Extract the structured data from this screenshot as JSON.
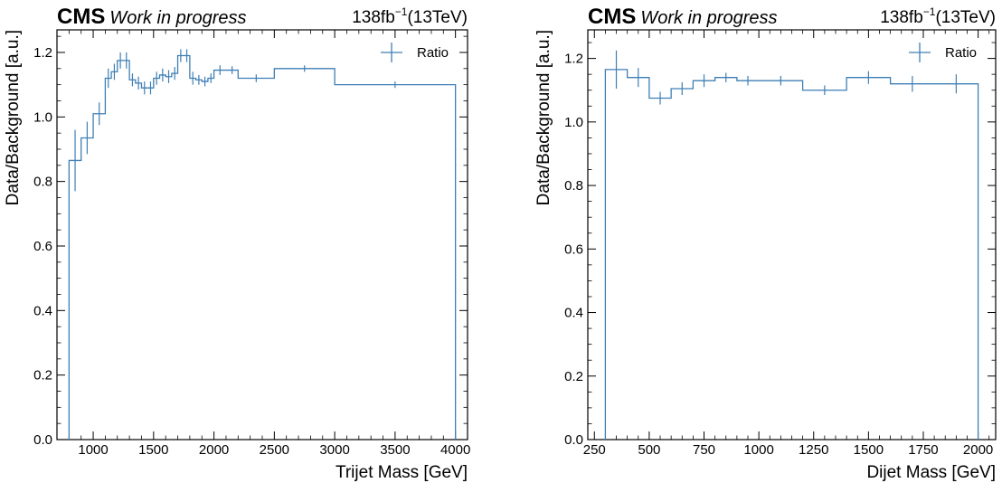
{
  "colors": {
    "series": "#3f7fb5",
    "frame": "#000000"
  },
  "chart_data": [
    {
      "type": "line",
      "style": "step-histogram-with-error-bars",
      "experiment": "CMS",
      "status": "Work in progress",
      "lumi_main": "138fb",
      "lumi_exp": "−1",
      "lumi_energy": "(13TeV)",
      "xlabel": "Trijet Mass [GeV]",
      "ylabel": "Data/Background [a.u.]",
      "xlim": [
        700,
        4100
      ],
      "ylim": [
        0,
        1.27
      ],
      "xticks": [
        1000,
        1500,
        2000,
        2500,
        3000,
        3500,
        4000
      ],
      "xtick_labels": [
        "1000",
        "1500",
        "2000",
        "2500",
        "3000",
        "3500",
        "4000"
      ],
      "yticks": [
        0,
        0.2,
        0.4,
        0.6,
        0.8,
        1.0,
        1.2
      ],
      "ytick_labels": [
        "0.0",
        "0.2",
        "0.4",
        "0.6",
        "0.8",
        "1.0",
        "1.2"
      ],
      "legend": {
        "entries": [
          "Ratio"
        ],
        "position": "top-right"
      },
      "series": [
        {
          "name": "Ratio",
          "bin_edges": [
            800,
            900,
            1000,
            1100,
            1150,
            1200,
            1250,
            1300,
            1350,
            1400,
            1450,
            1500,
            1550,
            1600,
            1650,
            1700,
            1750,
            1800,
            1850,
            1900,
            1950,
            2000,
            2100,
            2200,
            2500,
            3000,
            4000
          ],
          "values": [
            0.865,
            0.935,
            1.01,
            1.12,
            1.14,
            1.175,
            1.175,
            1.115,
            1.105,
            1.09,
            1.09,
            1.12,
            1.13,
            1.125,
            1.135,
            1.19,
            1.19,
            1.12,
            1.115,
            1.11,
            1.12,
            1.145,
            1.145,
            1.12,
            1.15,
            1.1
          ],
          "errors": [
            0.095,
            0.05,
            0.035,
            0.03,
            0.025,
            0.025,
            0.025,
            0.02,
            0.02,
            0.02,
            0.02,
            0.02,
            0.02,
            0.02,
            0.02,
            0.02,
            0.02,
            0.02,
            0.015,
            0.015,
            0.015,
            0.015,
            0.012,
            0.012,
            0.01,
            0.01
          ]
        }
      ]
    },
    {
      "type": "line",
      "style": "step-histogram-with-error-bars",
      "experiment": "CMS",
      "status": "Work in progress",
      "lumi_main": "138fb",
      "lumi_exp": "−1",
      "lumi_energy": "(13TeV)",
      "xlabel": "Dijet Mass [GeV]",
      "ylabel": "Data/Background [a.u.]",
      "xlim": [
        220,
        2080
      ],
      "ylim": [
        0,
        1.29
      ],
      "xticks": [
        250,
        500,
        750,
        1000,
        1250,
        1500,
        1750,
        2000
      ],
      "xtick_labels": [
        "250",
        "500",
        "750",
        "1000",
        "1250",
        "1500",
        "1750",
        "2000"
      ],
      "yticks": [
        0,
        0.2,
        0.4,
        0.6,
        0.8,
        1.0,
        1.2
      ],
      "ytick_labels": [
        "0.0",
        "0.2",
        "0.4",
        "0.6",
        "0.8",
        "1.0",
        "1.2"
      ],
      "legend": {
        "entries": [
          "Ratio"
        ],
        "position": "top-right"
      },
      "series": [
        {
          "name": "Ratio",
          "bin_edges": [
            300,
            400,
            500,
            600,
            700,
            800,
            900,
            1000,
            1200,
            1400,
            1600,
            1800,
            2000
          ],
          "values": [
            1.165,
            1.14,
            1.075,
            1.105,
            1.13,
            1.14,
            1.13,
            1.13,
            1.1,
            1.14,
            1.12,
            1.12
          ],
          "errors": [
            0.06,
            0.03,
            0.02,
            0.02,
            0.02,
            0.015,
            0.015,
            0.015,
            0.015,
            0.02,
            0.025,
            0.03
          ]
        }
      ]
    }
  ]
}
